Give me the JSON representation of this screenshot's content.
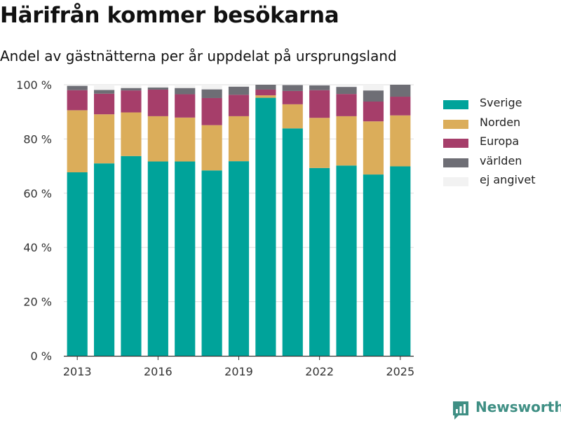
{
  "title": "Härifrån kommer besökarna",
  "subtitle": "Andel av gästnätterna per år uppdelat på ursprungsland",
  "brand": {
    "name": "Newsworthy",
    "icon": "newsworthy-logo-icon"
  },
  "chart_data": {
    "type": "bar",
    "stacked": true,
    "title": "Härifrån kommer besökarna",
    "subtitle": "Andel av gästnätterna per år uppdelat på ursprungsland",
    "xlabel": "",
    "ylabel": "",
    "categories": [
      "2013",
      "2014",
      "2015",
      "2016",
      "2017",
      "2018",
      "2019",
      "2020",
      "2021",
      "2022",
      "2023",
      "2024",
      "2025"
    ],
    "x_tick_labels": [
      "2013",
      "2016",
      "2019",
      "2022",
      "2025"
    ],
    "y_ticks": [
      0,
      20,
      40,
      60,
      80,
      100
    ],
    "y_tick_labels": [
      "0 %",
      "20 %",
      "40 %",
      "60 %",
      "80 %",
      "100 %"
    ],
    "ylim": [
      0,
      100
    ],
    "grid": "horizontal",
    "legend_position": "right",
    "series": [
      {
        "name": "Sverige",
        "color": "#00a39a",
        "values": [
          67.7,
          71.0,
          73.7,
          71.7,
          71.7,
          68.4,
          71.8,
          95.2,
          83.9,
          69.3,
          70.2,
          66.9,
          69.9
        ]
      },
      {
        "name": "Norden",
        "color": "#dbad5a",
        "values": [
          22.9,
          18.1,
          16.1,
          16.7,
          16.2,
          16.7,
          16.6,
          0.9,
          8.9,
          18.5,
          18.2,
          19.6,
          18.8
        ]
      },
      {
        "name": "Europa",
        "color": "#a63e6a",
        "values": [
          7.4,
          7.6,
          8.1,
          9.8,
          8.6,
          10.0,
          7.9,
          2.1,
          4.9,
          10.2,
          8.2,
          7.3,
          6.9
        ]
      },
      {
        "name": "världen",
        "color": "#6e6e75",
        "values": [
          1.6,
          1.4,
          0.9,
          0.8,
          2.3,
          3.2,
          3.0,
          1.8,
          2.2,
          1.8,
          2.6,
          4.1,
          4.4
        ]
      },
      {
        "name": "ej angivet",
        "color": "#f2f2f2",
        "values": [
          0.4,
          1.9,
          1.2,
          1.0,
          1.2,
          1.7,
          0.7,
          0.0,
          0.1,
          0.2,
          0.8,
          2.1,
          0.0
        ]
      }
    ]
  }
}
